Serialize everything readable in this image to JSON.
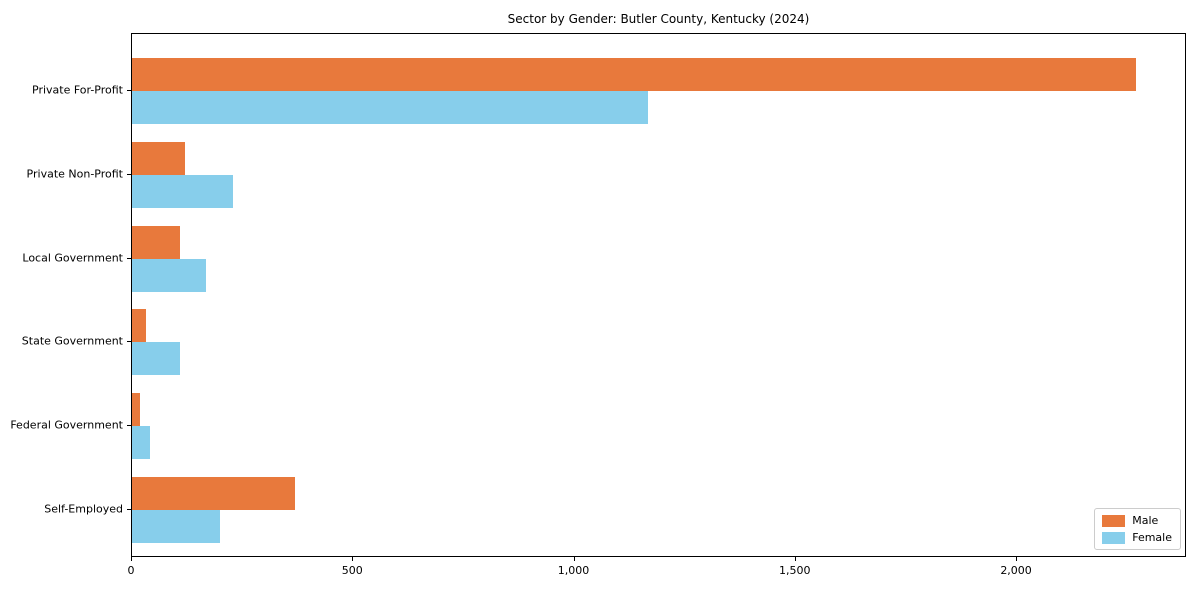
{
  "figure": {
    "title": "Sector by Gender: Butler County, Kentucky (2024)"
  },
  "chart_data": {
    "type": "bar",
    "orientation": "horizontal",
    "title": "Sector by Gender: Butler County, Kentucky (2024)",
    "xlabel": "",
    "ylabel": "",
    "categories": [
      "Private For-Profit",
      "Private Non-Profit",
      "Local Government",
      "State Government",
      "Federal Government",
      "Self-Employed"
    ],
    "series": [
      {
        "name": "Male",
        "color": "#e8793c",
        "values": [
          2269,
          120,
          109,
          32,
          18,
          369
        ]
      },
      {
        "name": "Female",
        "color": "#87ceeb",
        "values": [
          1165,
          227,
          166,
          108,
          41,
          199
        ]
      }
    ],
    "xlim": [
      0,
      2384
    ],
    "xticks": [
      {
        "value": 0,
        "label": "0"
      },
      {
        "value": 500,
        "label": "500"
      },
      {
        "value": 1000,
        "label": "1,000"
      },
      {
        "value": 1500,
        "label": "1,500"
      },
      {
        "value": 2000,
        "label": "2,000"
      }
    ],
    "grid": false,
    "legend": {
      "position": "lower right",
      "entries": [
        "Male",
        "Female"
      ]
    }
  },
  "colors": {
    "male": "#e8793c",
    "female": "#87ceeb",
    "spine": "#000000",
    "text": "#000000",
    "legend_border": "#cccccc"
  }
}
